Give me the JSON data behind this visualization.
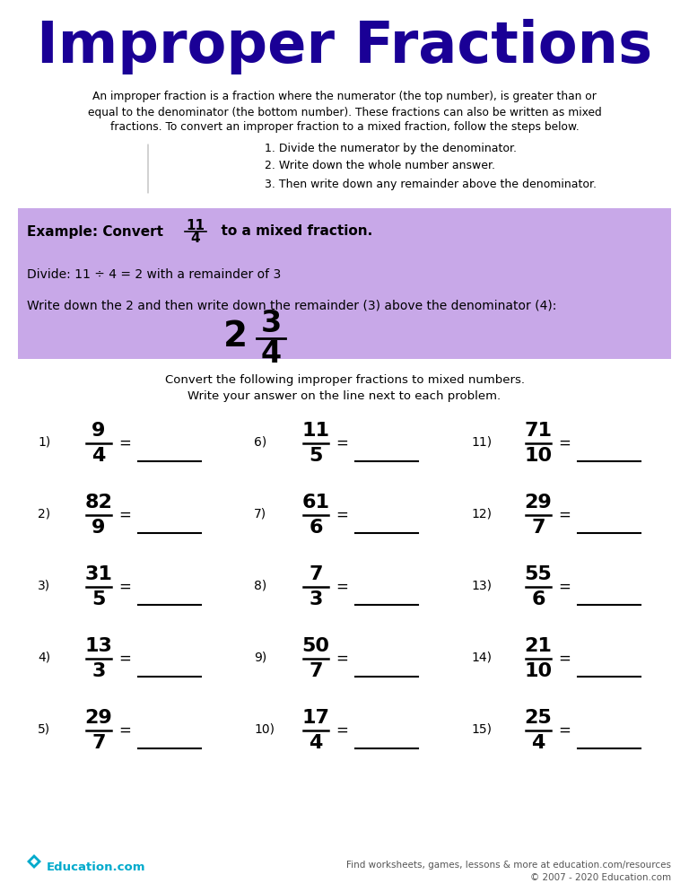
{
  "title": "Improper Fractions",
  "title_color": "#1a0096",
  "bg_color": "#ffffff",
  "intro_text_lines": [
    "An improper fraction is a fraction where the numerator (the top number), is greater than or",
    "equal to the denominator (the bottom number). These fractions can also be written as mixed",
    "fractions. To convert an improper fraction to a mixed fraction, follow the steps below."
  ],
  "steps": [
    "1. Divide the numerator by the denominator.",
    "2. Write down the whole number answer.",
    "3. Then write down any remainder above the denominator."
  ],
  "example_bg": "#c8a8e8",
  "example_label": "Example: Convert",
  "example_num": "11",
  "example_den": "4",
  "example_text1": "to a mixed fraction.",
  "example_divide": "Divide: 11 ÷ 4 = 2 with a remainder of 3",
  "example_write": "Write down the 2 and then write down the remainder (3) above the denominator (4):",
  "example_result_whole": "2",
  "example_result_num": "3",
  "example_result_den": "4",
  "instruction1": "Convert the following improper fractions to mixed numbers.",
  "instruction2": "Write your answer on the line next to each problem.",
  "problems_col1": [
    {
      "num": "1)",
      "frac_n": "9",
      "frac_d": "4"
    },
    {
      "num": "2)",
      "frac_n": "82",
      "frac_d": "9"
    },
    {
      "num": "3)",
      "frac_n": "31",
      "frac_d": "5"
    },
    {
      "num": "4)",
      "frac_n": "13",
      "frac_d": "3"
    },
    {
      "num": "5)",
      "frac_n": "29",
      "frac_d": "7"
    }
  ],
  "problems_col2": [
    {
      "num": "6)",
      "frac_n": "11",
      "frac_d": "5"
    },
    {
      "num": "7)",
      "frac_n": "61",
      "frac_d": "6"
    },
    {
      "num": "8)",
      "frac_n": "7",
      "frac_d": "3"
    },
    {
      "num": "9)",
      "frac_n": "50",
      "frac_d": "7"
    },
    {
      "num": "10)",
      "frac_n": "17",
      "frac_d": "4"
    }
  ],
  "problems_col3": [
    {
      "num": "11)",
      "frac_n": "71",
      "frac_d": "10"
    },
    {
      "num": "12)",
      "frac_n": "29",
      "frac_d": "7"
    },
    {
      "num": "13)",
      "frac_n": "55",
      "frac_d": "6"
    },
    {
      "num": "14)",
      "frac_n": "21",
      "frac_d": "10"
    },
    {
      "num": "15)",
      "frac_n": "25",
      "frac_d": "4"
    }
  ],
  "footer_left": "Education.com",
  "footer_right1": "Find worksheets, games, lessons & more at education.com/resources",
  "footer_right2": "© 2007 - 2020 Education.com",
  "footer_logo_color": "#00aacc"
}
